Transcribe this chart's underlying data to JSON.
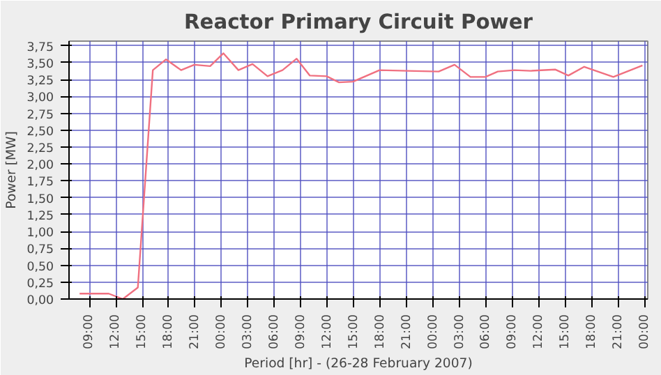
{
  "chart_data": {
    "type": "line",
    "title": "Reactor Primary Circuit Power",
    "xlabel": "Period [hr] - (26-28 February 2007)",
    "ylabel": "Power [MW]",
    "x": [
      "2007-02-26T07:54",
      "2007-02-26T11:12",
      "2007-02-26T12:48",
      "2007-02-26T14:30",
      "2007-02-26T16:12",
      "2007-02-26T17:42",
      "2007-02-26T19:24",
      "2007-02-26T20:54",
      "2007-02-26T22:42",
      "2007-02-27T00:12",
      "2007-02-27T01:54",
      "2007-02-27T03:30",
      "2007-02-27T05:12",
      "2007-02-27T06:54",
      "2007-02-27T08:30",
      "2007-02-27T10:00",
      "2007-02-27T11:54",
      "2007-02-27T13:18",
      "2007-02-27T14:54",
      "2007-02-27T17:54",
      "2007-02-27T21:00",
      "2007-02-28T00:36",
      "2007-02-28T02:24",
      "2007-02-28T04:12",
      "2007-02-28T05:54",
      "2007-02-28T07:18",
      "2007-02-28T09:12",
      "2007-02-28T11:00",
      "2007-02-28T13:48",
      "2007-02-28T15:18",
      "2007-02-28T17:06",
      "2007-02-28T20:24",
      "2007-02-28T23:42"
    ],
    "series": [
      {
        "color": "#f07080",
        "values": [
          0.08,
          0.08,
          0.0,
          0.17,
          3.39,
          3.55,
          3.39,
          3.47,
          3.45,
          3.64,
          3.39,
          3.48,
          3.3,
          3.39,
          3.56,
          3.31,
          3.3,
          3.21,
          3.22,
          3.39,
          3.38,
          3.37,
          3.47,
          3.29,
          3.29,
          3.37,
          3.39,
          3.38,
          3.4,
          3.31,
          3.44,
          3.29,
          3.46
        ]
      }
    ],
    "xlim": [
      "2007-02-26T06:42",
      "2007-03-01T00:18"
    ],
    "ylim": [
      0,
      3.82
    ],
    "xticks": [
      {
        "value": "2007-02-26T09:00",
        "label": "09:00"
      },
      {
        "value": "2007-02-26T12:00",
        "label": "12:00"
      },
      {
        "value": "2007-02-26T15:00",
        "label": "15:00"
      },
      {
        "value": "2007-02-26T18:00",
        "label": "18:00"
      },
      {
        "value": "2007-02-26T21:00",
        "label": "21:00"
      },
      {
        "value": "2007-02-27T00:00",
        "label": "00:00"
      },
      {
        "value": "2007-02-27T03:00",
        "label": "03:00"
      },
      {
        "value": "2007-02-27T06:00",
        "label": "06:00"
      },
      {
        "value": "2007-02-27T09:00",
        "label": "09:00"
      },
      {
        "value": "2007-02-27T12:00",
        "label": "12:00"
      },
      {
        "value": "2007-02-27T15:00",
        "label": "15:00"
      },
      {
        "value": "2007-02-27T18:00",
        "label": "18:00"
      },
      {
        "value": "2007-02-27T21:00",
        "label": "21:00"
      },
      {
        "value": "2007-02-28T00:00",
        "label": "00:00"
      },
      {
        "value": "2007-02-28T03:00",
        "label": "03:00"
      },
      {
        "value": "2007-02-28T06:00",
        "label": "06:00"
      },
      {
        "value": "2007-02-28T09:00",
        "label": "09:00"
      },
      {
        "value": "2007-02-28T12:00",
        "label": "12:00"
      },
      {
        "value": "2007-02-28T15:00",
        "label": "15:00"
      },
      {
        "value": "2007-02-28T18:00",
        "label": "18:00"
      },
      {
        "value": "2007-02-28T21:00",
        "label": "21:00"
      },
      {
        "value": "2007-03-01T00:00",
        "label": "00:00"
      }
    ],
    "yticks": [
      {
        "value": 0,
        "label": "0,00"
      },
      {
        "value": 0.25,
        "label": "0,25"
      },
      {
        "value": 0.5,
        "label": "0,50"
      },
      {
        "value": 0.75,
        "label": "0,75"
      },
      {
        "value": 1,
        "label": "1,00"
      },
      {
        "value": 1.25,
        "label": "1,25"
      },
      {
        "value": 1.5,
        "label": "1,50"
      },
      {
        "value": 1.75,
        "label": "1,75"
      },
      {
        "value": 2,
        "label": "2,00"
      },
      {
        "value": 2.25,
        "label": "2,25"
      },
      {
        "value": 2.5,
        "label": "2,50"
      },
      {
        "value": 2.75,
        "label": "2,75"
      },
      {
        "value": 3,
        "label": "3,00"
      },
      {
        "value": 3.25,
        "label": "3,25"
      },
      {
        "value": 3.5,
        "label": "3,50"
      },
      {
        "value": 3.75,
        "label": "3,75"
      }
    ],
    "grid": true,
    "line_style": "solid"
  }
}
